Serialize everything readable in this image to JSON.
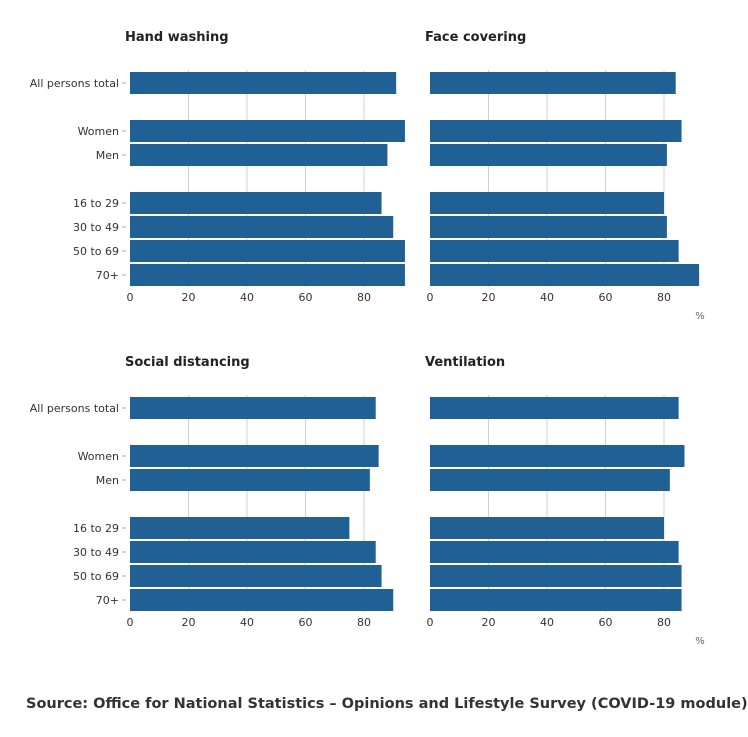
{
  "chart_data": [
    {
      "type": "bar",
      "orientation": "horizontal",
      "title": "Hand washing",
      "categories": [
        "All persons total",
        "Women",
        "Men",
        "16 to 29",
        "30 to 49",
        "50 to 69",
        "70+"
      ],
      "values": [
        91,
        94,
        88,
        86,
        90,
        94,
        94
      ],
      "xlim": [
        0,
        94
      ],
      "xticks": [
        0,
        20,
        40,
        60,
        80
      ],
      "grid": true
    },
    {
      "type": "bar",
      "orientation": "horizontal",
      "title": "Face covering",
      "categories": [
        "All persons total",
        "Women",
        "Men",
        "16 to 29",
        "30 to 49",
        "50 to 69",
        "70+"
      ],
      "values": [
        84,
        86,
        81,
        80,
        81,
        85,
        92
      ],
      "xlim": [
        0,
        94
      ],
      "xticks": [
        0,
        20,
        40,
        60,
        80
      ],
      "xlabel": "%",
      "grid": true
    },
    {
      "type": "bar",
      "orientation": "horizontal",
      "title": "Social distancing",
      "categories": [
        "All persons total",
        "Women",
        "Men",
        "16 to 29",
        "30 to 49",
        "50 to 69",
        "70+"
      ],
      "values": [
        84,
        85,
        82,
        75,
        84,
        86,
        90
      ],
      "xlim": [
        0,
        94
      ],
      "xticks": [
        0,
        20,
        40,
        60,
        80
      ],
      "grid": true
    },
    {
      "type": "bar",
      "orientation": "horizontal",
      "title": "Ventilation",
      "categories": [
        "All persons total",
        "Women",
        "Men",
        "16 to 29",
        "30 to 49",
        "50 to 69",
        "70+"
      ],
      "values": [
        85,
        87,
        82,
        80,
        85,
        86,
        86
      ],
      "xlim": [
        0,
        94
      ],
      "xticks": [
        0,
        20,
        40,
        60,
        80
      ],
      "xlabel": "%",
      "grid": true
    }
  ],
  "colors": {
    "bar": "#206095",
    "grid": "#d0d0d0"
  },
  "source": "Source: Office for National Statistics – Opinions and Lifestyle Survey (COVID-19 module)"
}
